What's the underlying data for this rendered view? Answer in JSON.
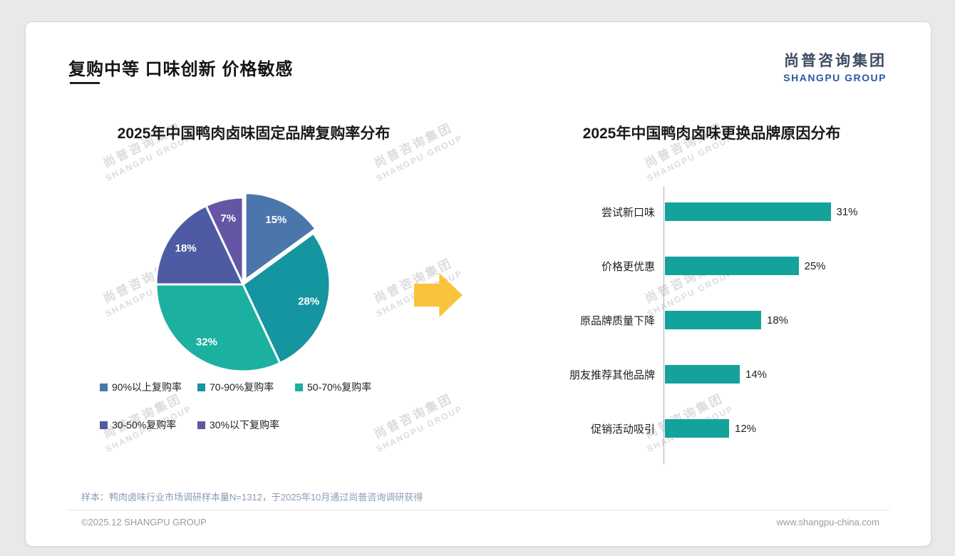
{
  "page": {
    "title": "复购中等 口味创新 价格敏感",
    "logo": {
      "cn": "尚普咨询集团",
      "en": "SHANGPU GROUP"
    },
    "watermark": {
      "cn": "尚普咨询集团",
      "en": "SHANGPU GROUP"
    },
    "note": "样本：鸭肉卤味行业市场调研样本量N=1312，于2025年10月通过尚普咨询调研获得",
    "footer_left": "©2025.12 SHANGPU GROUP",
    "footer_right": "www.shangpu-china.com"
  },
  "colors": {
    "background": "#e9e9e9",
    "card": "#ffffff",
    "arrow": "#f9c33d",
    "logo_blue": "#2b5aa0",
    "note_text": "#8a9cb5",
    "bar_teal": "#14a39c"
  },
  "chart_data": [
    {
      "type": "pie",
      "title": "2025年中国鸭肉卤味固定品牌复购率分布",
      "labels": [
        "90%以上复购率",
        "70-90%复购率",
        "50-70%复购率",
        "30-50%复购率",
        "30%以下复购率"
      ],
      "values": [
        15,
        28,
        32,
        18,
        7
      ],
      "data_labels": [
        "15%",
        "28%",
        "32%",
        "18%",
        "7%"
      ],
      "colors": [
        "#4a76ab",
        "#1595a0",
        "#1cb0a0",
        "#4e5ba3",
        "#6456a5"
      ],
      "legend_position": "bottom",
      "start_angle_deg": -90,
      "direction": "clockwise"
    },
    {
      "type": "bar",
      "orientation": "horizontal",
      "title": "2025年中国鸭肉卤味更换品牌原因分布",
      "categories": [
        "尝试新口味",
        "价格更优惠",
        "原品牌质量下降",
        "朋友推荐其他品牌",
        "促销活动吸引"
      ],
      "values": [
        31,
        25,
        18,
        14,
        12
      ],
      "value_labels": [
        "31%",
        "25%",
        "18%",
        "14%",
        "12%"
      ],
      "bar_color": "#14a39c",
      "xlim": [
        0,
        35
      ],
      "grid": false,
      "legend": false
    }
  ]
}
